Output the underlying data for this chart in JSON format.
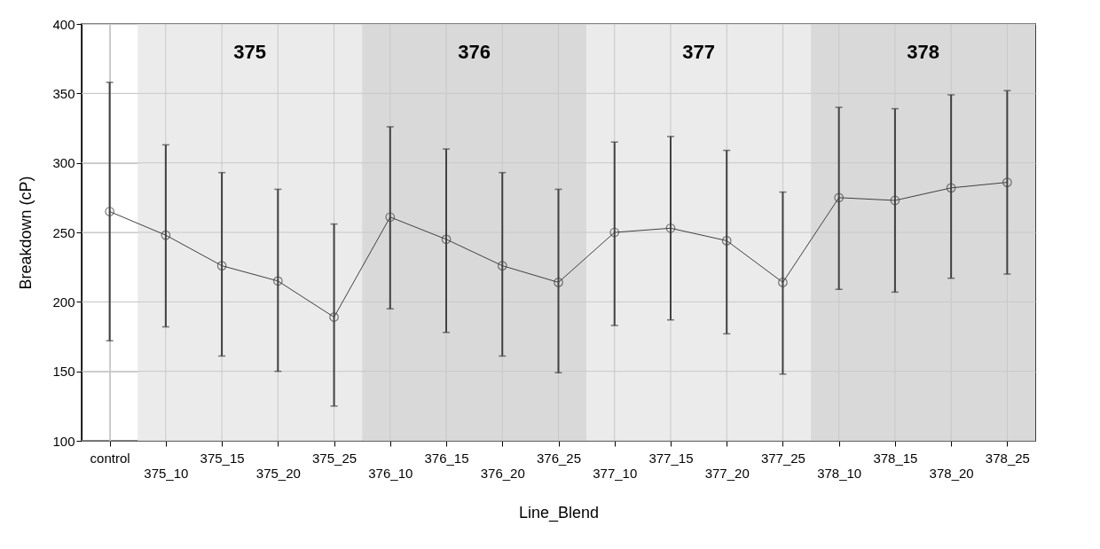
{
  "chart_data": {
    "type": "line",
    "xlabel": "Line_Blend",
    "ylabel": "Breakdown (cP)",
    "categories": [
      "control",
      "375_10",
      "375_15",
      "375_20",
      "375_25",
      "376_10",
      "376_15",
      "376_20",
      "376_25",
      "377_10",
      "377_15",
      "377_20",
      "377_25",
      "378_10",
      "378_15",
      "378_20",
      "378_25"
    ],
    "series": [
      {
        "color": "#404040",
        "values": [
          265,
          248,
          226,
          215,
          189,
          261,
          245,
          226,
          214,
          250,
          253,
          244,
          214,
          275,
          273,
          282,
          286
        ],
        "errors": [
          [
            172,
            358
          ],
          [
            182,
            313
          ],
          [
            161,
            293
          ],
          [
            150,
            281
          ],
          [
            125,
            256
          ],
          [
            195,
            326
          ],
          [
            178,
            310
          ],
          [
            161,
            293
          ],
          [
            149,
            281
          ],
          [
            183,
            315
          ],
          [
            187,
            319
          ],
          [
            177,
            309
          ],
          [
            148,
            279
          ],
          [
            209,
            340
          ],
          [
            207,
            339
          ],
          [
            217,
            349
          ],
          [
            220,
            352
          ]
        ]
      }
    ],
    "ylim": [
      100,
      400
    ],
    "yticks": [
      100,
      150,
      200,
      250,
      300,
      350,
      400
    ],
    "grid": true,
    "marker": "circle",
    "line_style": "solid",
    "bands": [
      {
        "axis": "x",
        "from": "375_10",
        "to": "375_25",
        "label": "375",
        "color": "#ebebeb"
      },
      {
        "axis": "x",
        "from": "376_10",
        "to": "376_25",
        "label": "376",
        "color": "#d9d9d9"
      },
      {
        "axis": "x",
        "from": "377_10",
        "to": "377_25",
        "label": "377",
        "color": "#ebebeb"
      },
      {
        "axis": "x",
        "from": "378_10",
        "to": "378_25",
        "label": "378",
        "color": "#d9d9d9"
      }
    ]
  }
}
